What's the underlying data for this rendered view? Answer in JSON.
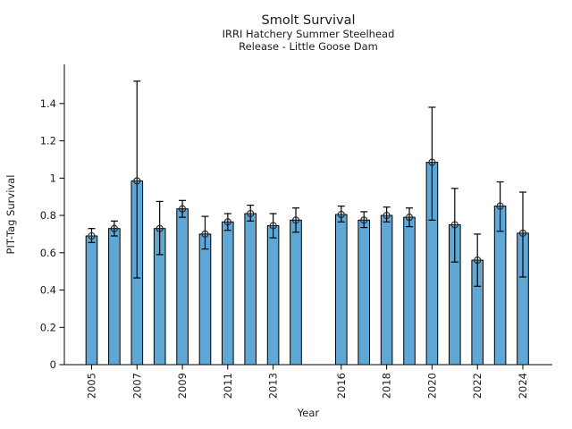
{
  "chart_data": {
    "type": "bar",
    "title": "Smolt Survival",
    "subtitle1": "IRRI Hatchery Summer Steelhead",
    "subtitle2": "Release - Little Goose Dam",
    "xlabel": "Year",
    "ylabel": "PIT-Tag Survival",
    "categories": [
      2005,
      2006,
      2007,
      2008,
      2009,
      2010,
      2011,
      2012,
      2013,
      2014,
      2016,
      2017,
      2018,
      2019,
      2020,
      2021,
      2022,
      2023,
      2024
    ],
    "values": [
      0.69,
      0.73,
      0.985,
      0.73,
      0.835,
      0.7,
      0.765,
      0.81,
      0.745,
      0.775,
      0.805,
      0.775,
      0.8,
      0.79,
      1.085,
      0.75,
      0.56,
      0.85,
      0.705
    ],
    "error_low": [
      0.655,
      0.69,
      0.465,
      0.59,
      0.79,
      0.62,
      0.72,
      0.77,
      0.68,
      0.71,
      0.765,
      0.735,
      0.765,
      0.74,
      0.775,
      0.55,
      0.42,
      0.715,
      0.47
    ],
    "error_high": [
      0.73,
      0.77,
      1.52,
      0.875,
      0.88,
      0.795,
      0.81,
      0.855,
      0.81,
      0.84,
      0.85,
      0.82,
      0.845,
      0.84,
      1.38,
      0.945,
      0.7,
      0.98,
      0.925
    ],
    "missing_years": [
      2015
    ],
    "x_ticks": [
      2005,
      2007,
      2009,
      2011,
      2013,
      2016,
      2018,
      2020,
      2022,
      2024
    ],
    "x_tick_labels": [
      "2005",
      "2007",
      "2009",
      "2011",
      "2013",
      "2016",
      "2018",
      "2020",
      "2022",
      "2024"
    ],
    "y_ticks": [
      0,
      0.2,
      0.4,
      0.6,
      0.8,
      1,
      1.2,
      1.4
    ],
    "y_tick_labels": [
      "0",
      "0.2",
      "0.4",
      "0.6",
      "0.8",
      "1",
      "1.2",
      "1.4"
    ],
    "xlim": [
      2003.8,
      2025.3
    ],
    "ylim": [
      0,
      1.61
    ],
    "grid": false,
    "legend": "none",
    "marker": "open-circle-plus",
    "bar_color": "#5fa8d5",
    "edge_color": "#000000",
    "error_color": "#000000",
    "text_color": "#1a1a1a"
  }
}
